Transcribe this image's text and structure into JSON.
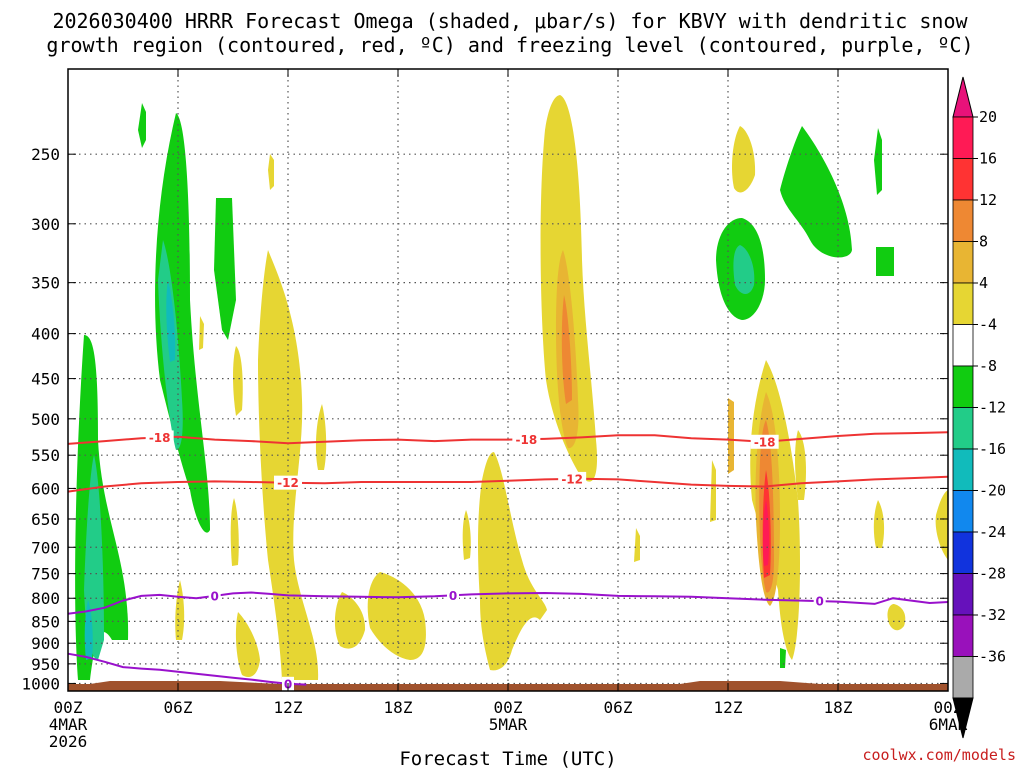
{
  "chart_data": {
    "type": "time-height contour",
    "title_line1": "2026030400 HRRR Forecast Omega (shaded, μbar/s) for KBVY with dendritic snow",
    "title_line2": "growth region (contoured, red, ºC) and freezing level (contoured, purple, ºC)",
    "xlabel": "Forecast Time (UTC)",
    "credit": "coolwx.com/models",
    "x_range_hours": [
      0,
      48
    ],
    "y_range_hpa": [
      1020,
      200
    ],
    "x_ticks": [
      {
        "hour": 0,
        "label": "00Z",
        "sub1": "4MAR",
        "sub2": "2026"
      },
      {
        "hour": 6,
        "label": "06Z"
      },
      {
        "hour": 12,
        "label": "12Z"
      },
      {
        "hour": 18,
        "label": "18Z"
      },
      {
        "hour": 24,
        "label": "00Z",
        "sub1": "5MAR"
      },
      {
        "hour": 30,
        "label": "06Z"
      },
      {
        "hour": 36,
        "label": "12Z"
      },
      {
        "hour": 42,
        "label": "18Z"
      },
      {
        "hour": 48,
        "label": "00Z",
        "sub1": "6MAR"
      }
    ],
    "y_ticks": [
      250,
      300,
      350,
      400,
      450,
      500,
      550,
      600,
      650,
      700,
      750,
      800,
      850,
      900,
      950,
      1000
    ],
    "colorbar": {
      "labels": [
        "20",
        "16",
        "12",
        "8",
        "4",
        "-4",
        "-8",
        "-12",
        "-16",
        "-20",
        "-24",
        "-28",
        "-32",
        "-36"
      ],
      "colors": [
        "#ff1a55",
        "#ff3333",
        "#ee8833",
        "#e8b533",
        "#e6d633",
        "#ffffff",
        "#11cc11",
        "#22cc88",
        "#11bbbb",
        "#1188ee",
        "#1133dd",
        "#6611bb",
        "#9911bb",
        "#aaaaaa"
      ],
      "top_color": "#e8127a",
      "bottom_color": "#000000"
    },
    "contours": [
      {
        "name": "-18C isotherm",
        "color": "#ee3333",
        "label": "-18",
        "points": [
          [
            0,
            534
          ],
          [
            2,
            530
          ],
          [
            4,
            526
          ],
          [
            6,
            524
          ],
          [
            8,
            528
          ],
          [
            10,
            530
          ],
          [
            12,
            533
          ],
          [
            14,
            531
          ],
          [
            16,
            529
          ],
          [
            18,
            528
          ],
          [
            20,
            530
          ],
          [
            22,
            528
          ],
          [
            24,
            528
          ],
          [
            26,
            527
          ],
          [
            28,
            525
          ],
          [
            30,
            522
          ],
          [
            32,
            522
          ],
          [
            34,
            526
          ],
          [
            36,
            528
          ],
          [
            38,
            531
          ],
          [
            40,
            527
          ],
          [
            42,
            523
          ],
          [
            44,
            520
          ],
          [
            46,
            519
          ],
          [
            48,
            518
          ]
        ],
        "label_hours": [
          5,
          25,
          38
        ]
      },
      {
        "name": "-12C isotherm",
        "color": "#ee3333",
        "label": "-12",
        "points": [
          [
            0,
            605
          ],
          [
            2,
            597
          ],
          [
            4,
            592
          ],
          [
            6,
            590
          ],
          [
            8,
            589
          ],
          [
            10,
            590
          ],
          [
            12,
            591
          ],
          [
            14,
            592
          ],
          [
            16,
            590
          ],
          [
            18,
            590
          ],
          [
            20,
            590
          ],
          [
            22,
            590
          ],
          [
            24,
            588
          ],
          [
            26,
            586
          ],
          [
            28,
            585
          ],
          [
            30,
            586
          ],
          [
            32,
            590
          ],
          [
            34,
            594
          ],
          [
            36,
            596
          ],
          [
            38,
            597
          ],
          [
            40,
            592
          ],
          [
            42,
            589
          ],
          [
            44,
            586
          ],
          [
            46,
            584
          ],
          [
            48,
            582
          ]
        ],
        "label_hours": [
          12,
          27.5
        ]
      },
      {
        "name": "0C freezing level",
        "color": "#9911cc",
        "label": "0",
        "points": [
          [
            0,
            833
          ],
          [
            1,
            828
          ],
          [
            2,
            820
          ],
          [
            3,
            805
          ],
          [
            4,
            795
          ],
          [
            5,
            793
          ],
          [
            6,
            797
          ],
          [
            7,
            800
          ],
          [
            8,
            795
          ],
          [
            9,
            790
          ],
          [
            10,
            788
          ],
          [
            11,
            791
          ],
          [
            12,
            794
          ],
          [
            14,
            796
          ],
          [
            16,
            797
          ],
          [
            18,
            798
          ],
          [
            20,
            796
          ],
          [
            22,
            792
          ],
          [
            24,
            790
          ],
          [
            26,
            789
          ],
          [
            28,
            791
          ],
          [
            30,
            795
          ],
          [
            32,
            796
          ],
          [
            34,
            797
          ],
          [
            36,
            800
          ],
          [
            38,
            803
          ],
          [
            40,
            805
          ],
          [
            42,
            807
          ],
          [
            44,
            812
          ],
          [
            45,
            800
          ],
          [
            46,
            805
          ],
          [
            47,
            810
          ],
          [
            48,
            808
          ]
        ],
        "label_hours": [
          8,
          21,
          41
        ]
      },
      {
        "name": "0C lower branch",
        "color": "#9911cc",
        "label": "0",
        "points": [
          [
            0,
            925
          ],
          [
            1,
            933
          ],
          [
            2,
            945
          ],
          [
            3,
            958
          ],
          [
            4,
            962
          ],
          [
            5,
            965
          ],
          [
            6,
            970
          ],
          [
            7,
            975
          ],
          [
            8,
            980
          ],
          [
            9,
            985
          ],
          [
            10,
            990
          ],
          [
            11,
            996
          ],
          [
            12,
            1001
          ],
          [
            13,
            1003
          ]
        ],
        "label_hours": [
          12
        ]
      }
    ],
    "terrain_color": "#a0522d"
  }
}
